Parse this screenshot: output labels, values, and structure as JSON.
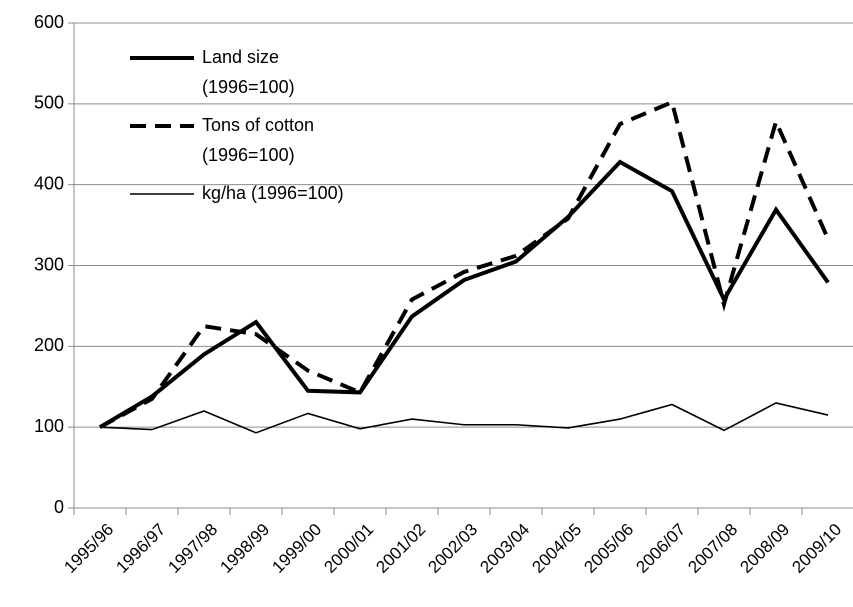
{
  "chart_data": {
    "type": "line",
    "categories": [
      "1995/96",
      "1996/97",
      "1997/98",
      "1998/99",
      "1999/00",
      "2000/01",
      "2001/02",
      "2002/03",
      "2003/04",
      "2004/05",
      "2005/06",
      "2006/07",
      "2007/08",
      "2008/09",
      "2009/10"
    ],
    "series": [
      {
        "name": "Land size (1996=100)",
        "color": "#000000",
        "line_style": "thick",
        "values": [
          100,
          138,
          190,
          230,
          145,
          143,
          237,
          282,
          305,
          360,
          428,
          392,
          258,
          369,
          279
        ]
      },
      {
        "name": "Tons of cotton (1996=100)",
        "color": "#000000",
        "line_style": "dashed",
        "values": [
          100,
          135,
          225,
          215,
          170,
          143,
          258,
          292,
          312,
          358,
          475,
          502,
          252,
          478,
          333
        ]
      },
      {
        "name": "kg/ha (1996=100)",
        "color": "#000000",
        "line_style": "thin",
        "values": [
          100,
          97,
          120,
          93,
          117,
          98,
          110,
          103,
          103,
          99,
          110,
          128,
          96,
          130,
          115
        ]
      }
    ],
    "ylim": [
      0,
      600
    ],
    "yticks": [
      0,
      100,
      200,
      300,
      400,
      500,
      600
    ],
    "grid": true,
    "legend": "top-left"
  }
}
